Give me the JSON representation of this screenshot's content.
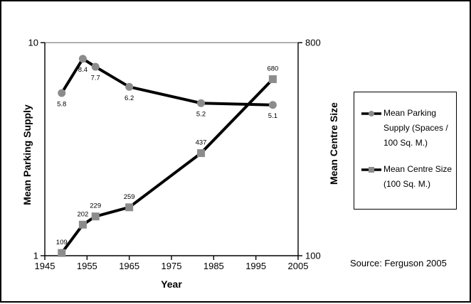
{
  "chart": {
    "source_note": "Source: Ferguson 2005",
    "x_axis": {
      "title": "Year",
      "min": 1945,
      "max": 2005,
      "ticks": [
        1945,
        1955,
        1965,
        1975,
        1985,
        1995,
        2005
      ]
    },
    "left_axis": {
      "title": "Mean Parking Supply",
      "scale": "log",
      "min": 1,
      "max": 10,
      "ticks": [
        10,
        1
      ]
    },
    "right_axis": {
      "title": "Mean Centre Size",
      "scale": "linear",
      "min": 100,
      "max": 800,
      "ticks": [
        800,
        100
      ]
    },
    "legend": {
      "items": [
        {
          "label": "Mean Parking Supply (Spaces / 100 Sq. M.)",
          "marker": "circle"
        },
        {
          "label": "Mean Centre Size (100 Sq. M.)",
          "marker": "square"
        }
      ]
    },
    "colors": {
      "line": "#000000",
      "marker": "#8c8c8c",
      "plot_top_border": "#808080"
    }
  },
  "chart_data": {
    "type": "line",
    "title": "",
    "xlabel": "Year",
    "x": [
      1949,
      1954,
      1957,
      1965,
      1982,
      1999
    ],
    "xlim": [
      1945,
      2005
    ],
    "series": [
      {
        "id": "mean-parking-supply",
        "name": "Mean Parking Supply (Spaces / 100 Sq. M.)",
        "axis": "left",
        "marker": "circle",
        "label_position": "below",
        "values": [
          5.8,
          8.4,
          7.7,
          6.2,
          5.2,
          5.1
        ]
      },
      {
        "id": "mean-centre-size",
        "name": "Mean Centre Size (100 Sq. M.)",
        "axis": "right",
        "marker": "square",
        "label_position": "above",
        "values": [
          109,
          202,
          229,
          259,
          437,
          680
        ]
      }
    ],
    "ylabel_left": "Mean Parking Supply",
    "ylabel_right": "Mean Centre Size",
    "left_ylim": [
      1,
      10
    ],
    "left_scale": "log",
    "right_ylim": [
      100,
      800
    ],
    "right_scale": "linear",
    "grid": false,
    "legend_position": "right"
  }
}
